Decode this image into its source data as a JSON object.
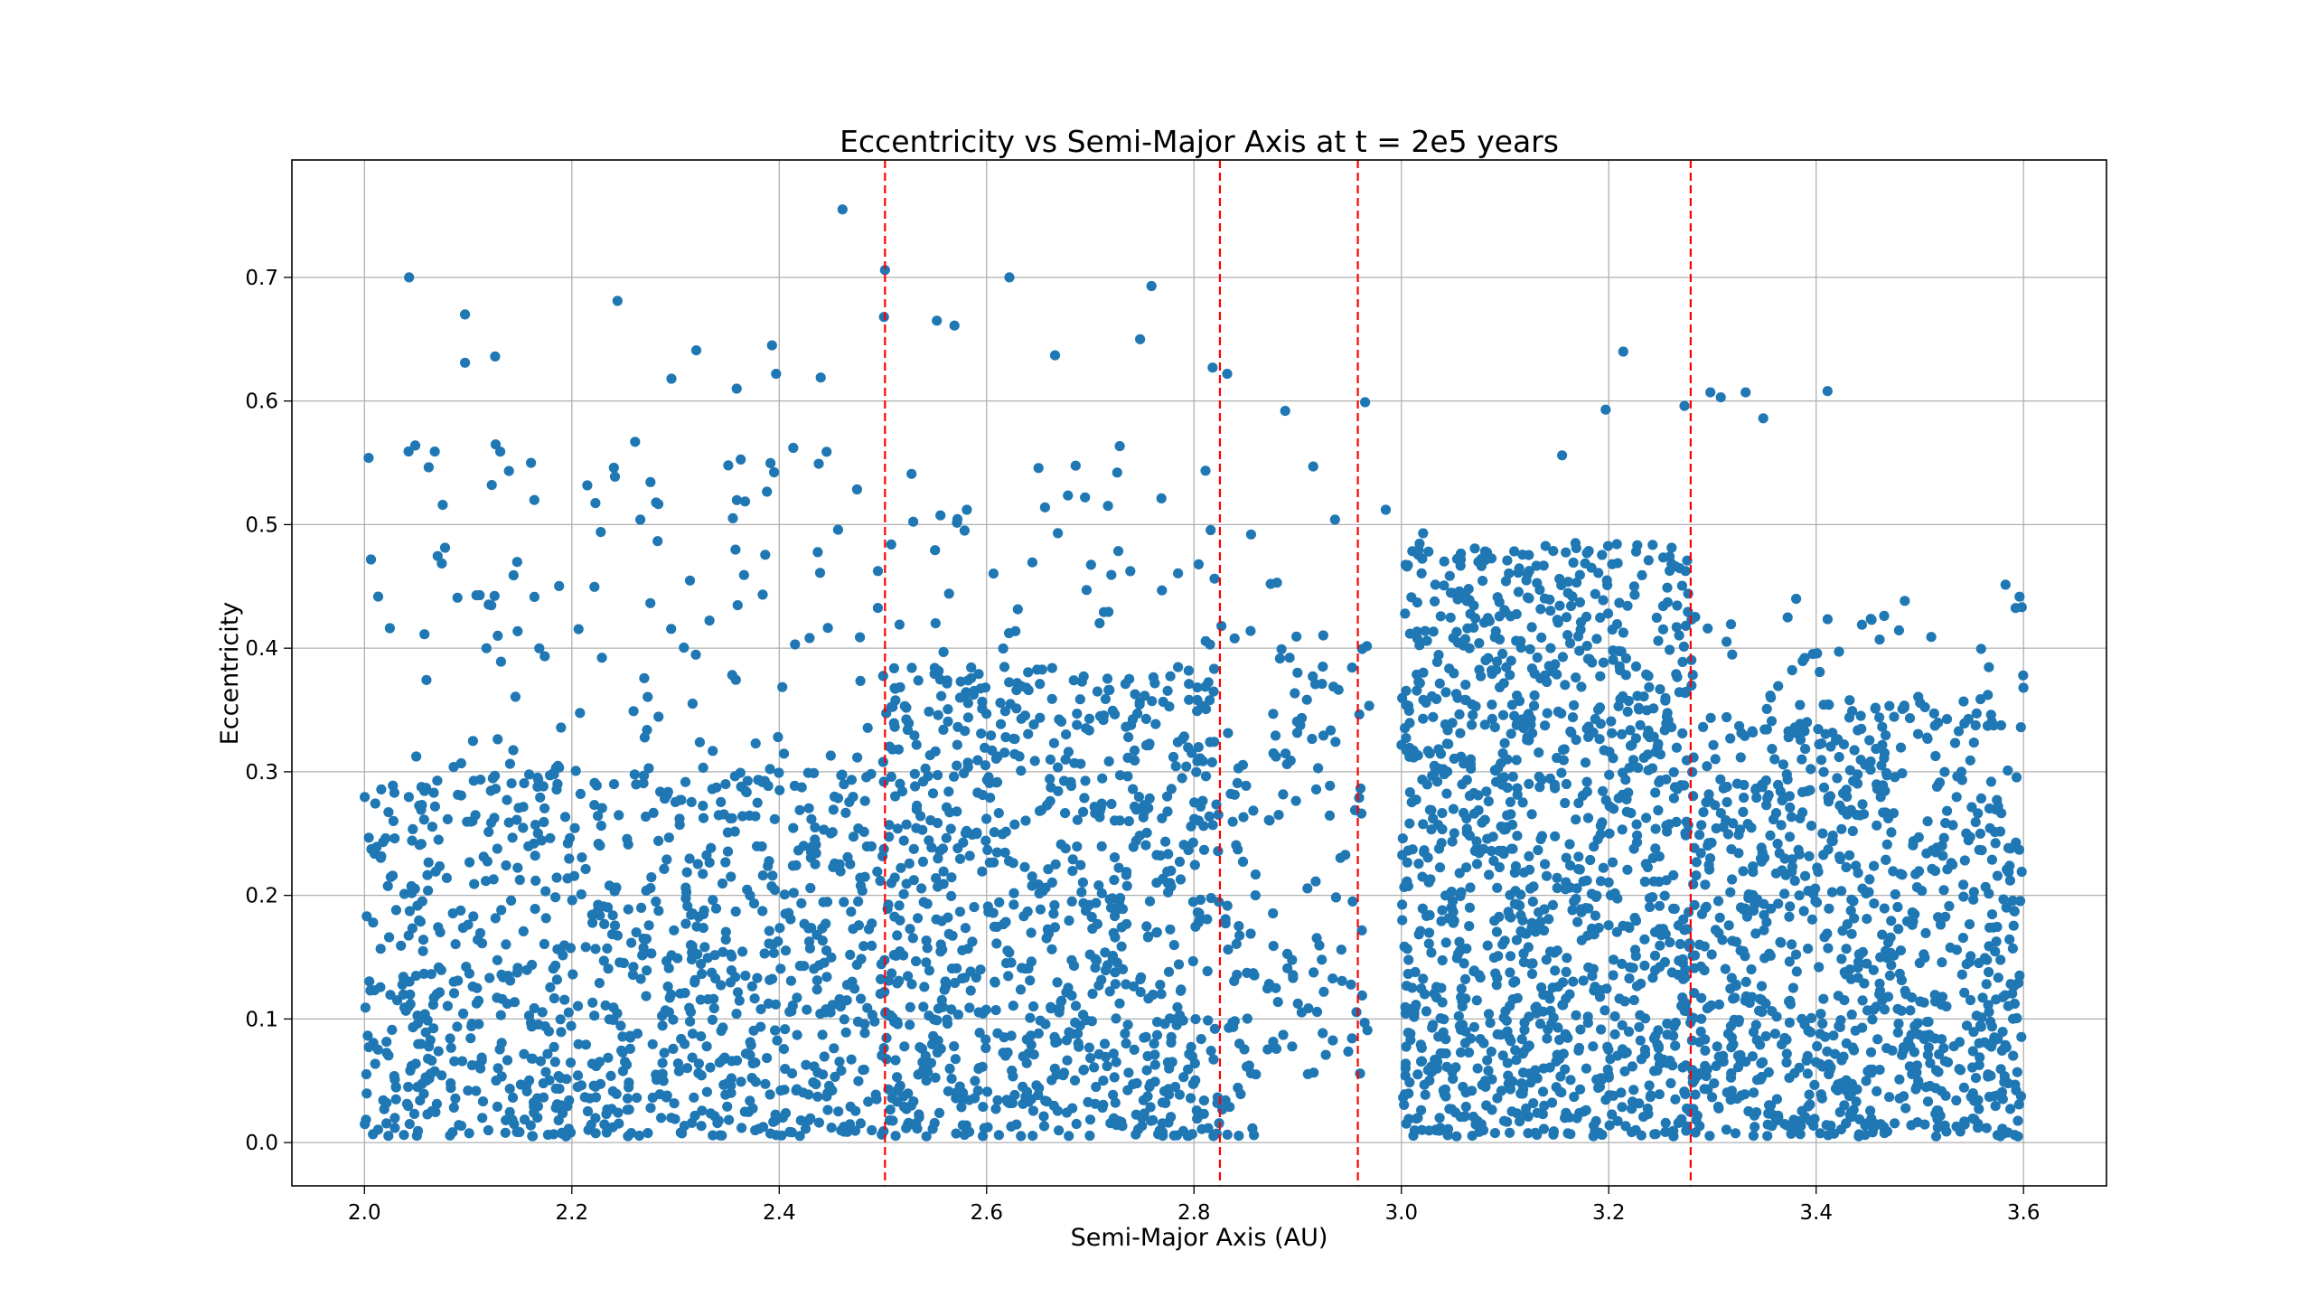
{
  "chart_data": {
    "type": "scatter",
    "title": "Eccentricity vs Semi-Major Axis at t = 2e5 years",
    "xlabel": "Semi-Major Axis (AU)",
    "ylabel": "Eccentricity",
    "xlim": [
      1.93,
      3.68
    ],
    "ylim": [
      -0.035,
      0.795
    ],
    "grid": true,
    "legend": "none",
    "x_ticks": [
      2.0,
      2.2,
      2.4,
      2.6,
      2.8,
      3.0,
      3.2,
      3.4,
      3.6
    ],
    "x_tick_labels": [
      "2.0",
      "2.2",
      "2.4",
      "2.6",
      "2.8",
      "3.0",
      "3.2",
      "3.4",
      "3.6"
    ],
    "y_ticks": [
      0.0,
      0.1,
      0.2,
      0.3,
      0.4,
      0.5,
      0.6,
      0.7
    ],
    "y_tick_labels": [
      "0.0",
      "0.1",
      "0.2",
      "0.3",
      "0.4",
      "0.5",
      "0.6",
      "0.7"
    ],
    "marker_color": "#1f77b4",
    "vline_color": "#ff0000",
    "vlines": [
      2.502,
      2.825,
      2.958,
      3.279
    ],
    "points": [
      [
        2.043,
        0.7
      ],
      [
        2.461,
        0.755
      ],
      [
        2.502,
        0.706
      ],
      [
        2.622,
        0.7
      ],
      [
        2.759,
        0.693
      ],
      [
        2.097,
        0.67
      ],
      [
        2.244,
        0.681
      ],
      [
        2.126,
        0.636
      ],
      [
        2.097,
        0.631
      ],
      [
        2.501,
        0.668
      ],
      [
        2.552,
        0.665
      ],
      [
        2.569,
        0.661
      ],
      [
        2.32,
        0.641
      ],
      [
        2.393,
        0.645
      ],
      [
        2.666,
        0.637
      ],
      [
        2.397,
        0.622
      ],
      [
        2.44,
        0.619
      ],
      [
        2.818,
        0.627
      ],
      [
        2.832,
        0.622
      ],
      [
        2.748,
        0.65
      ],
      [
        2.915,
        0.547
      ],
      [
        2.965,
        0.599
      ],
      [
        2.888,
        0.592
      ],
      [
        3.214,
        0.64
      ],
      [
        3.298,
        0.607
      ],
      [
        3.308,
        0.603
      ],
      [
        3.332,
        0.607
      ],
      [
        3.411,
        0.608
      ],
      [
        3.273,
        0.596
      ],
      [
        3.197,
        0.593
      ],
      [
        2.049,
        0.564
      ],
      [
        2.004,
        0.554
      ],
      [
        2.131,
        0.559
      ],
      [
        2.261,
        0.567
      ],
      [
        2.296,
        0.618
      ],
      [
        2.359,
        0.61
      ],
      [
        3.155,
        0.556
      ],
      [
        3.349,
        0.586
      ],
      [
        2.936,
        0.504
      ],
      [
        2.985,
        0.512
      ],
      [
        3.021,
        0.493
      ],
      [
        2.855,
        0.492
      ],
      [
        2.874,
        0.452
      ],
      [
        2.88,
        0.453
      ]
    ],
    "clusters": [
      {
        "x": [
          2.0,
          2.5
        ],
        "e": [
          0.0,
          0.56
        ],
        "dense_e_max": 0.3,
        "count": 1050
      },
      {
        "x": [
          2.5,
          2.82
        ],
        "e": [
          0.0,
          0.56
        ],
        "dense_e_max": 0.38,
        "count": 900
      },
      {
        "x": [
          2.82,
          2.86
        ],
        "e": [
          0.0,
          0.45
        ],
        "dense_e_max": 0.33,
        "count": 60
      },
      {
        "x": [
          2.87,
          2.97
        ],
        "e": [
          0.05,
          0.41
        ],
        "dense_e_max": 0.41,
        "count": 95
      },
      {
        "x": [
          3.0,
          3.28
        ],
        "e": [
          0.0,
          0.48
        ],
        "dense_e_max": 0.48,
        "count": 1150
      },
      {
        "x": [
          3.28,
          3.6
        ],
        "e": [
          0.0,
          0.45
        ],
        "dense_e_max": 0.35,
        "count": 950
      }
    ]
  }
}
